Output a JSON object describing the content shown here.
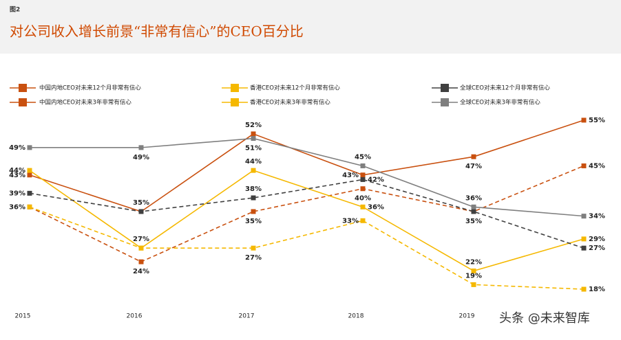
{
  "figure_label": "图2",
  "title": "对公司收入增长前景“非常有信心”的CEO百分比",
  "watermark": "头条 @未来智库",
  "chart_data": {
    "type": "line",
    "categories": [
      "2015",
      "2016",
      "2017",
      "2018",
      "2019",
      null
    ],
    "ylim": [
      15,
      58
    ],
    "legend": "top",
    "series": [
      {
        "name": "中国内地CEO对未来12个月非常有信心",
        "color": "#c9500f",
        "dash": false,
        "values": [
          43,
          35,
          52,
          43,
          47,
          55
        ],
        "value_labels": [
          "43%",
          "35%",
          "52%",
          "43%",
          "47%",
          "55%"
        ]
      },
      {
        "name": "中国内地CEO对未来3年非常有信心",
        "color": "#c9500f",
        "dash": true,
        "values": [
          36,
          24,
          35,
          40,
          35,
          45
        ],
        "value_labels": [
          null,
          "24%",
          "35%",
          "40%",
          null,
          "45%"
        ]
      },
      {
        "name": "香港CEO对未来12个月非常有信心",
        "color": "#f5b800",
        "dash": false,
        "values": [
          44,
          27,
          44,
          36,
          22,
          29
        ],
        "value_labels": [
          "44%",
          "27%",
          "44%",
          "36%",
          "22%",
          "29%"
        ]
      },
      {
        "name": "香港CEO对未来3年非常有信心",
        "color": "#f5b800",
        "dash": true,
        "values": [
          36,
          27,
          27,
          33,
          19,
          18
        ],
        "value_labels": [
          "36%",
          null,
          "27%",
          "33%",
          "19%",
          "18%"
        ]
      },
      {
        "name": "全球CEO对未来12个月非常有信心",
        "color": "#404040",
        "dash": true,
        "values": [
          39,
          35,
          38,
          42,
          35,
          27
        ],
        "value_labels": [
          "39%",
          null,
          "38%",
          "42%",
          "35%",
          "27%"
        ]
      },
      {
        "name": "全球CEO对未来3年非常有信心",
        "color": "#7f7f7f",
        "dash": false,
        "values": [
          49,
          49,
          51,
          45,
          36,
          34
        ],
        "value_labels": [
          "49%",
          "49%",
          "51%",
          "45%",
          "36%",
          "34%"
        ]
      }
    ]
  }
}
